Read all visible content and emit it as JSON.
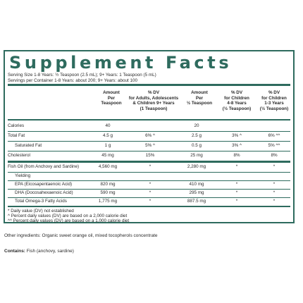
{
  "title": "Supplement Facts",
  "serving_size": "Serving Size 1-8 Years: ½ Teaspoon (2.5 mL); 9+ Years: 1 Teaspoon (5 mL)",
  "servings_per_container": "Servings per Container 1-8 Years: about 200; 9+ Years: about 100",
  "headers": {
    "amount_1tsp": "Amount\nPer\nTeaspoon",
    "dv_adults": "% DV\nfor Adults, Adolescents\n& Children 9+ Years\n(1 Teaspoon)",
    "amount_half": "Amount\nPer\n½ Teaspoon",
    "dv_4_8": "% DV\nfor Children\n4-8 Years\n(½ Teaspoon)",
    "dv_1_3": "% DV\nfor Children\n1-3 Years\n(½ Teaspoon)"
  },
  "rows": [
    {
      "name": "Calories",
      "a": "40",
      "b": "",
      "c": "20",
      "d": "",
      "e": ""
    },
    {
      "name": "Total Fat",
      "a": "4.5 g",
      "b": "6% ^",
      "c": "2.5 g",
      "d": "3% ^",
      "e": "6% ^^"
    },
    {
      "name": "Saturated Fat",
      "a": "1 g",
      "b": "5% ^",
      "c": "0.5 g",
      "d": "3% ^",
      "e": "5% ^^"
    },
    {
      "name": "Cholesterol",
      "a": "45 mg",
      "b": "15%",
      "c": "25 mg",
      "d": "8%",
      "e": "8%"
    },
    {
      "name": "Fish Oil (from Anchovy and Sardine)",
      "a": "4,560 mg",
      "b": "*",
      "c": "2,280 mg",
      "d": "*",
      "e": "*"
    },
    {
      "name": "Yielding",
      "a": "",
      "b": "",
      "c": "",
      "d": "",
      "e": ""
    },
    {
      "name": "EPA (Eicosapentaenoic Acid)",
      "a": "820 mg",
      "b": "*",
      "c": "410 mg",
      "d": "*",
      "e": "*"
    },
    {
      "name": "DHA (Docosahexaenoic Acid)",
      "a": "590 mg",
      "b": "*",
      "c": "295 mg",
      "d": "*",
      "e": "*"
    },
    {
      "name": "Total Omega-3 Fatty Acids",
      "a": "1,775 mg",
      "b": "*",
      "c": "887.5 mg",
      "d": "*",
      "e": "*"
    }
  ],
  "footnotes": [
    "* Daily value (DV) not established",
    "^ Percent daily values (DV) are based on a 2,000 calorie diet",
    "^^ Percent daily values (DV) are based on a 1,000 calorie diet"
  ],
  "other_ingredients": "Other ingredients: Organic sweet orange oil, mixed tocopherols concentrate",
  "contains_label": "Contains:",
  "contains_value": " Fish (anchovy, sardine)",
  "colors": {
    "accent": "#2e6b5e"
  }
}
